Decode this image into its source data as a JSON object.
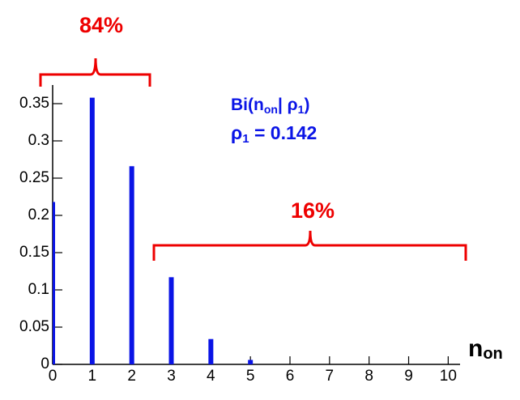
{
  "chart_data": {
    "type": "bar",
    "x": [
      0,
      1,
      2,
      3,
      4,
      5
    ],
    "values": [
      0.218,
      0.358,
      0.266,
      0.117,
      0.034,
      0.006
    ],
    "color": "#0a14e6",
    "xlim": [
      0,
      10.3
    ],
    "xticks": [
      0,
      1,
      2,
      3,
      4,
      5,
      6,
      7,
      8,
      9,
      10
    ],
    "ylim": [
      0,
      0.375
    ],
    "yticks": [
      0,
      0.05,
      0.1,
      0.15,
      0.2,
      0.25,
      0.3,
      0.35
    ],
    "x_label": [
      "n",
      "on"
    ],
    "annotations": {
      "left_fraction": "84%",
      "right_fraction": "16%",
      "formula": [
        "Bi(n",
        "on",
        "| ρ",
        "1",
        ")"
      ],
      "parameter": [
        "ρ",
        "1",
        " = 0.142"
      ]
    }
  }
}
